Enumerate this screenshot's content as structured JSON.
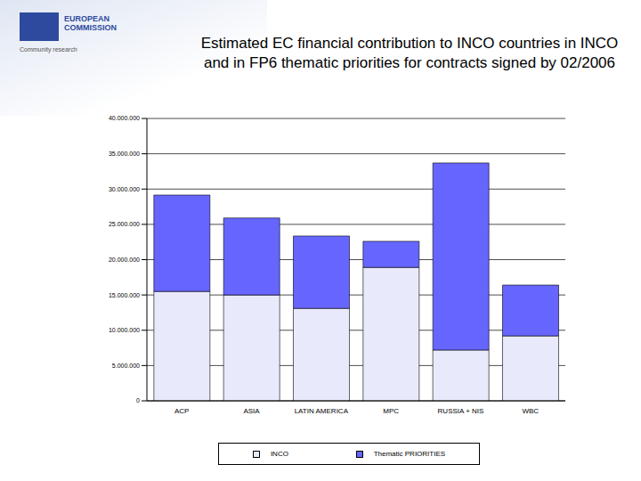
{
  "header": {
    "organization": "EUROPEAN COMMISSION",
    "tagline": "Community research"
  },
  "chart_data": {
    "type": "bar",
    "title": "Estimated EC financial contribution to INCO countries in INCO and in FP6 thematic priorities for contracts signed by 02/2006",
    "categories": [
      "ACP",
      "ASIA",
      "LATIN AMERICA",
      "MPC",
      "RUSSIA + NIS",
      "WBC"
    ],
    "series": [
      {
        "name": "INCO",
        "color": "#e8eafc",
        "values": [
          15500000,
          15000000,
          13100000,
          18900000,
          7200000,
          9200000
        ]
      },
      {
        "name": "Thematic PRIORITIES",
        "color": "#6666ff",
        "values": [
          13650000,
          10900000,
          10250000,
          3700000,
          26500000,
          7200000
        ]
      }
    ],
    "stacked": true,
    "grid": true,
    "legend": "bottom",
    "ylim": [
      0,
      40000000
    ],
    "yticks": [
      0,
      {
        "value": 5000000,
        "label": "5.000.000"
      },
      {
        "value": 10000000,
        "label": "10.000.000"
      },
      {
        "value": 15000000,
        "label": "15.000.000"
      },
      {
        "value": 20000000,
        "label": "20.000.000"
      },
      {
        "value": 25000000,
        "label": "25.000.000"
      },
      {
        "value": 30000000,
        "label": "30.000.000"
      },
      {
        "value": 35000000,
        "label": "35.000.000"
      },
      {
        "value": 40000000,
        "label": "40.000.000"
      }
    ]
  }
}
